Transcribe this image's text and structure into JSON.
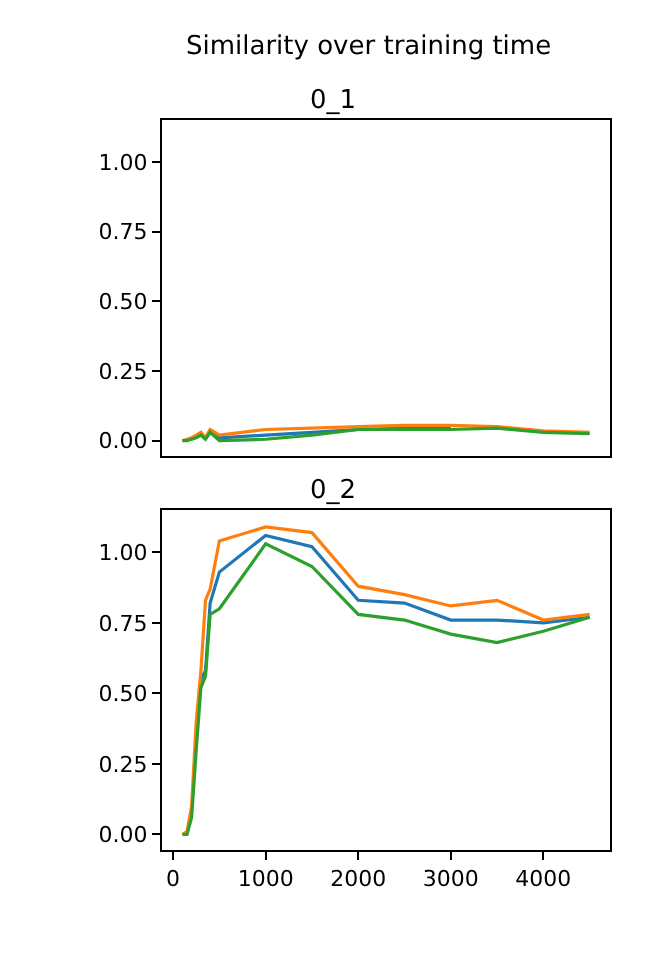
{
  "chart_data": [
    {
      "type": "line",
      "title": "0_1",
      "annotations": [
        "Similarity over training time"
      ],
      "tick_labels": "y",
      "x": [
        100,
        150,
        200,
        250,
        300,
        350,
        400,
        500,
        1000,
        1500,
        2000,
        2500,
        3000,
        3500,
        4000,
        4500
      ],
      "xlim": [
        -120,
        4720
      ],
      "ylim": [
        -0.055,
        1.15
      ],
      "yticks": [
        {
          "value": 0,
          "label": "0.00"
        },
        {
          "value": 0.25,
          "label": "0.25"
        },
        {
          "value": 0.5,
          "label": "0.50"
        },
        {
          "value": 0.75,
          "label": "0.75"
        },
        {
          "value": 1,
          "label": "1.00"
        }
      ],
      "series": [
        {
          "color": "#1f77b4",
          "values": [
            null,
            null,
            null,
            null,
            null,
            null,
            0.03,
            0.01,
            0.02,
            0.03,
            0.04,
            0.045,
            0.045,
            null,
            null,
            null
          ]
        },
        {
          "color": "#ff7f0e",
          "values": [
            0,
            0.005,
            0.01,
            0.02,
            0.03,
            0.01,
            0.04,
            0.02,
            0.04,
            0.045,
            0.05,
            0.055,
            0.055,
            0.05,
            0.035,
            0.03
          ]
        },
        {
          "color": "#2ca02c",
          "values": [
            0,
            0,
            0.005,
            0.01,
            0.02,
            0.005,
            0.03,
            0,
            0.005,
            0.02,
            0.04,
            0.04,
            0.04,
            0.045,
            0.03,
            0.025
          ]
        }
      ]
    },
    {
      "type": "line",
      "title": "0_2",
      "x": [
        100,
        150,
        200,
        250,
        300,
        350,
        400,
        500,
        1000,
        1500,
        2000,
        2500,
        3000,
        3500,
        4000,
        4500
      ],
      "xlim": [
        -120,
        4720
      ],
      "ylim": [
        -0.055,
        1.15
      ],
      "xticks": [
        0,
        1000,
        2000,
        3000,
        4000
      ],
      "yticks": [
        {
          "value": 0,
          "label": "0.00"
        },
        {
          "value": 0.25,
          "label": "0.25"
        },
        {
          "value": 0.5,
          "label": "0.50"
        },
        {
          "value": 0.75,
          "label": "0.75"
        },
        {
          "value": 1,
          "label": "1.00"
        }
      ],
      "series": [
        {
          "color": "#1f77b4",
          "values": [
            null,
            null,
            null,
            0.35,
            0.55,
            0.58,
            0.82,
            0.93,
            1.06,
            1.02,
            0.83,
            0.82,
            0.76,
            0.76,
            0.75,
            0.77
          ]
        },
        {
          "color": "#ff7f0e",
          "values": [
            0,
            0.01,
            0.1,
            0.4,
            0.58,
            0.83,
            0.87,
            1.04,
            1.09,
            1.07,
            0.88,
            0.85,
            0.81,
            0.83,
            0.76,
            0.78
          ]
        },
        {
          "color": "#2ca02c",
          "values": [
            0,
            0,
            0.06,
            0.3,
            0.52,
            0.56,
            0.78,
            0.8,
            1.03,
            0.95,
            0.78,
            0.76,
            0.71,
            0.68,
            0.72,
            0.77
          ]
        }
      ]
    }
  ]
}
